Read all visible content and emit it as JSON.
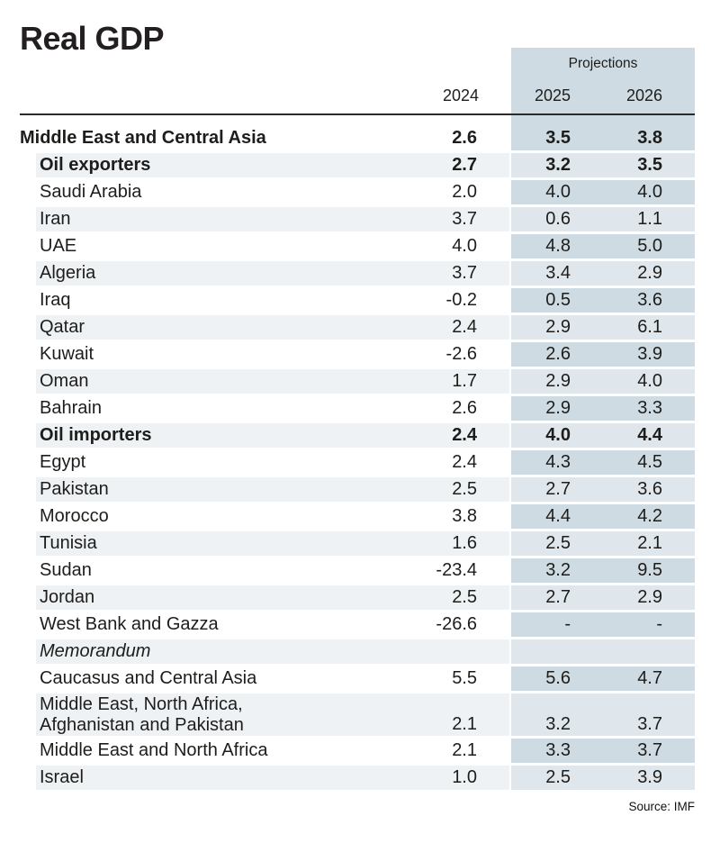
{
  "title": "Real GDP",
  "source": "Source: IMF",
  "colors": {
    "projection_column_dark": "#cedbe2",
    "projection_column_light": "#dfe7ec",
    "row_stripe": "#eef2f5",
    "rule_line": "#2b2b2b",
    "text": "#1d1d1b"
  },
  "chart_data": {
    "type": "table",
    "title": "Real GDP",
    "columns": [
      "2024",
      "2025",
      "2026"
    ],
    "column_group": {
      "label": "Projections",
      "columns": [
        "2025",
        "2026"
      ]
    },
    "source": "Source: IMF",
    "rows": [
      {
        "label": "Middle East and Central Asia",
        "bold": true,
        "indent": false,
        "values": [
          "2.6",
          "3.5",
          "3.8"
        ]
      },
      {
        "label": "Oil exporters",
        "bold": true,
        "indent": true,
        "values": [
          "2.7",
          "3.2",
          "3.5"
        ]
      },
      {
        "label": "Saudi Arabia",
        "indent": true,
        "values": [
          "2.0",
          "4.0",
          "4.0"
        ]
      },
      {
        "label": "Iran",
        "indent": true,
        "values": [
          "3.7",
          "0.6",
          "1.1"
        ]
      },
      {
        "label": "UAE",
        "indent": true,
        "values": [
          "4.0",
          "4.8",
          "5.0"
        ]
      },
      {
        "label": "Algeria",
        "indent": true,
        "values": [
          "3.7",
          "3.4",
          "2.9"
        ]
      },
      {
        "label": "Iraq",
        "indent": true,
        "values": [
          "-0.2",
          "0.5",
          "3.6"
        ]
      },
      {
        "label": "Qatar",
        "indent": true,
        "values": [
          "2.4",
          "2.9",
          "6.1"
        ]
      },
      {
        "label": "Kuwait",
        "indent": true,
        "values": [
          "-2.6",
          "2.6",
          "3.9"
        ]
      },
      {
        "label": "Oman",
        "indent": true,
        "values": [
          "1.7",
          "2.9",
          "4.0"
        ]
      },
      {
        "label": "Bahrain",
        "indent": true,
        "values": [
          "2.6",
          "2.9",
          "3.3"
        ]
      },
      {
        "label": "Oil importers",
        "bold": true,
        "indent": true,
        "values": [
          "2.4",
          "4.0",
          "4.4"
        ]
      },
      {
        "label": "Egypt",
        "indent": true,
        "values": [
          "2.4",
          "4.3",
          "4.5"
        ]
      },
      {
        "label": "Pakistan",
        "indent": true,
        "values": [
          "2.5",
          "2.7",
          "3.6"
        ]
      },
      {
        "label": "Morocco",
        "indent": true,
        "values": [
          "3.8",
          "4.4",
          "4.2"
        ]
      },
      {
        "label": "Tunisia",
        "indent": true,
        "values": [
          "1.6",
          "2.5",
          "2.1"
        ]
      },
      {
        "label": "Sudan",
        "indent": true,
        "values": [
          "-23.4",
          "3.2",
          "9.5"
        ]
      },
      {
        "label": "Jordan",
        "indent": true,
        "values": [
          "2.5",
          "2.7",
          "2.9"
        ]
      },
      {
        "label": "West Bank and Gazza",
        "indent": true,
        "values": [
          "-26.6",
          "-",
          "-"
        ]
      },
      {
        "label": "Memorandum",
        "italic": true,
        "indent": true,
        "values": [
          "",
          "",
          ""
        ]
      },
      {
        "label": "Caucasus and Central Asia",
        "indent": true,
        "values": [
          "5.5",
          "5.6",
          "4.7"
        ]
      },
      {
        "label": "Middle East, North Africa,\nAfghanistan and Pakistan",
        "indent": true,
        "two_line": true,
        "values": [
          "2.1",
          "3.2",
          "3.7"
        ]
      },
      {
        "label": "Middle East and North Africa",
        "indent": true,
        "values": [
          "2.1",
          "3.3",
          "3.7"
        ]
      },
      {
        "label": "Israel",
        "indent": true,
        "values": [
          "1.0",
          "2.5",
          "3.9"
        ]
      }
    ]
  }
}
